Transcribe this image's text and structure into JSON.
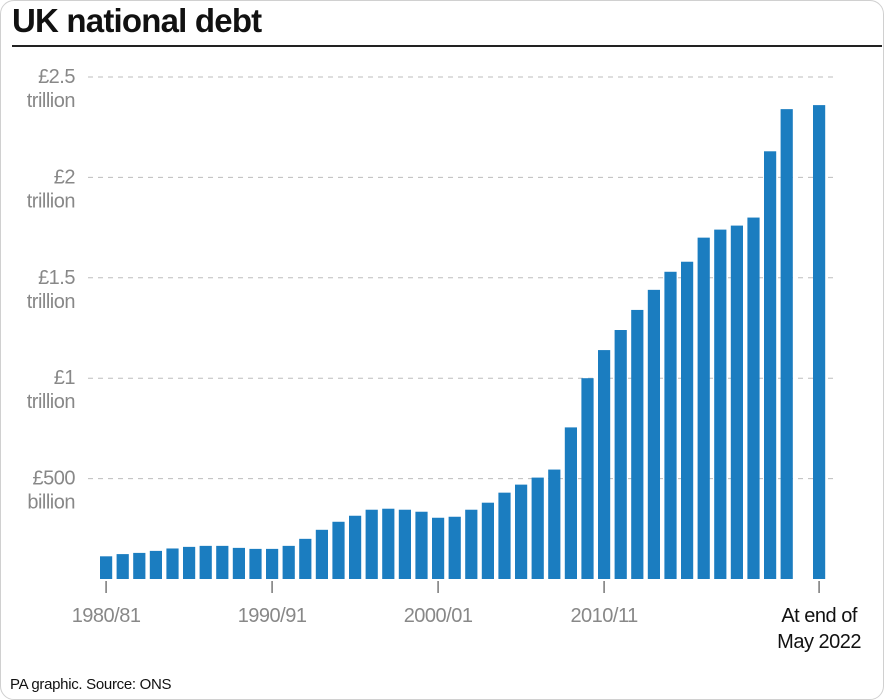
{
  "header": {
    "title": "UK national debt"
  },
  "footer": {
    "source": "PA graphic. Source: ONS"
  },
  "colors": {
    "bar": "#1b7dc0",
    "grid": "#bdbdbd",
    "axis_text": "#888888"
  },
  "chart_data": {
    "type": "bar",
    "title": "UK national debt",
    "unit": "£ billion",
    "ylim": [
      0,
      2500
    ],
    "grid": true,
    "y_ticks": [
      {
        "value": 500,
        "line1": "£500",
        "line2": "billion"
      },
      {
        "value": 1000,
        "line1": "£1",
        "line2": "trillion"
      },
      {
        "value": 1500,
        "line1": "£1.5",
        "line2": "trillion"
      },
      {
        "value": 2000,
        "line1": "£2",
        "line2": "trillion"
      },
      {
        "value": 2500,
        "line1": "£2.5",
        "line2": "trillion"
      }
    ],
    "x_ticks": [
      "1980/81",
      "1990/91",
      "2000/01",
      "2010/11"
    ],
    "categories": [
      "1980/81",
      "1981/82",
      "1982/83",
      "1983/84",
      "1984/85",
      "1985/86",
      "1986/87",
      "1987/88",
      "1988/89",
      "1989/90",
      "1990/91",
      "1991/92",
      "1992/93",
      "1993/94",
      "1994/95",
      "1995/96",
      "1996/97",
      "1997/98",
      "1998/99",
      "1999/00",
      "2000/01",
      "2001/02",
      "2002/03",
      "2003/04",
      "2004/05",
      "2005/06",
      "2006/07",
      "2007/08",
      "2008/09",
      "2009/10",
      "2010/11",
      "2011/12",
      "2012/13",
      "2013/14",
      "2014/15",
      "2015/16",
      "2016/17",
      "2017/18",
      "2018/19",
      "2019/20",
      "2020/21",
      "2021/22"
    ],
    "values": [
      113,
      124,
      130,
      140,
      152,
      160,
      165,
      165,
      155,
      150,
      150,
      165,
      200,
      245,
      285,
      315,
      345,
      350,
      345,
      335,
      305,
      310,
      345,
      380,
      430,
      470,
      505,
      545,
      755,
      1000,
      1140,
      1240,
      1340,
      1440,
      1530,
      1580,
      1700,
      1740,
      1760,
      1800,
      2130,
      2340
    ],
    "final": {
      "label_line1": "At end of",
      "label_line2": "May 2022",
      "value": 2360
    }
  }
}
